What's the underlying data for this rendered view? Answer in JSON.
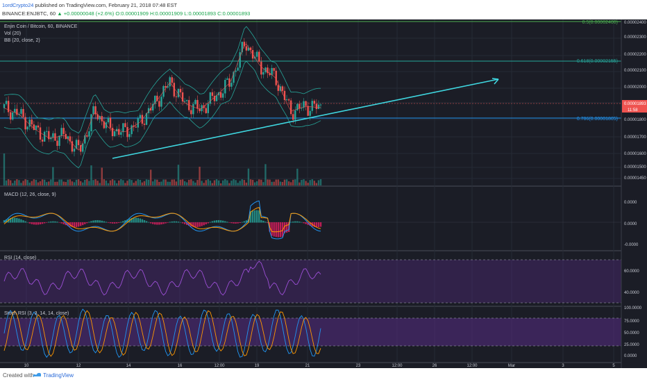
{
  "header": {
    "author": "1ordCrypto24",
    "published": "published on TradingView.com, February 21, 2018 07:48 EST",
    "symbol_line": "BINANCE:ENJBTC, 60",
    "change": "▲ +0.00000048 (+2.6%)",
    "ohlc": "O:0.00001909 H:0.00001909 L:0.00001893 C:0.00001893"
  },
  "main_pane": {
    "title": "Enjin Coin / Bitcoin, 60, BINANCE",
    "vol_label": "Vol (20)",
    "bb_label": "BB (20, close, 2)",
    "price_ticks": [
      "0.00002400",
      "0.00002300",
      "0.00002200",
      "0.00002100",
      "0.00002000",
      "0.00001900",
      "0.00001800",
      "0.00001700",
      "0.00001600",
      "0.00001500",
      "0.00001450"
    ],
    "fib_labels": [
      "0.5(0.00002400)",
      "0.618(0.00002155)",
      "0.786(0.00001805)"
    ],
    "fib_colors": [
      "#4caf50",
      "#26a69a",
      "#2196f3"
    ],
    "last_price": "0.00001893",
    "countdown": "11:58",
    "trendline_color": "#3fd7e0"
  },
  "macd_pane": {
    "label": "MACD (12, 26, close, 9)",
    "ticks": [
      "0.0000",
      "0.0000",
      "-0.0000"
    ]
  },
  "rsi_pane": {
    "label": "RSI (14, close)",
    "ticks": [
      "60.0000",
      "40.0000"
    ]
  },
  "stoch_pane": {
    "label": "Stoch RSI (3, 3, 14, 14, close)",
    "ticks": [
      "100.0000",
      "75.0000",
      "50.0000",
      "25.0000",
      "0.0000"
    ]
  },
  "time_axis": [
    "10",
    "12",
    "14",
    "16",
    "12:00",
    "19",
    "21",
    "23",
    "12:00",
    "26",
    "12:00",
    "Mar",
    "3",
    "5"
  ],
  "footer": {
    "created_with": "Created with",
    "brand": "TradingView"
  },
  "chart_data": [
    {
      "type": "line",
      "title": "Enjin Coin / Bitcoin, 60, BINANCE",
      "x": [
        "10",
        "12",
        "14",
        "16",
        "12:00",
        "19",
        "21"
      ],
      "series": [],
      "close_path": [
        1.89e-05,
        1.85e-05,
        1.76e-05,
        1.7e-05,
        1.72e-05,
        1.62e-05,
        1.87e-05,
        1.76e-05,
        1.74e-05,
        1.8e-05,
        1.92e-05,
        2.05e-05,
        1.92e-05,
        1.88e-05,
        1.96e-05,
        2.05e-05,
        2.3e-05,
        2.15e-05,
        2.08e-05,
        1.87e-05,
        1.9e-05,
        1.893e-05
      ],
      "fib_levels": [
        {
          "label": "0.5",
          "value": 2.4e-05
        },
        {
          "label": "0.618",
          "value": 2.155e-05
        },
        {
          "label": "0.786",
          "value": 1.805e-05
        }
      ],
      "last": 1.893e-05,
      "ylim": [
        1.45e-05,
        2.43e-05
      ]
    }
  ]
}
